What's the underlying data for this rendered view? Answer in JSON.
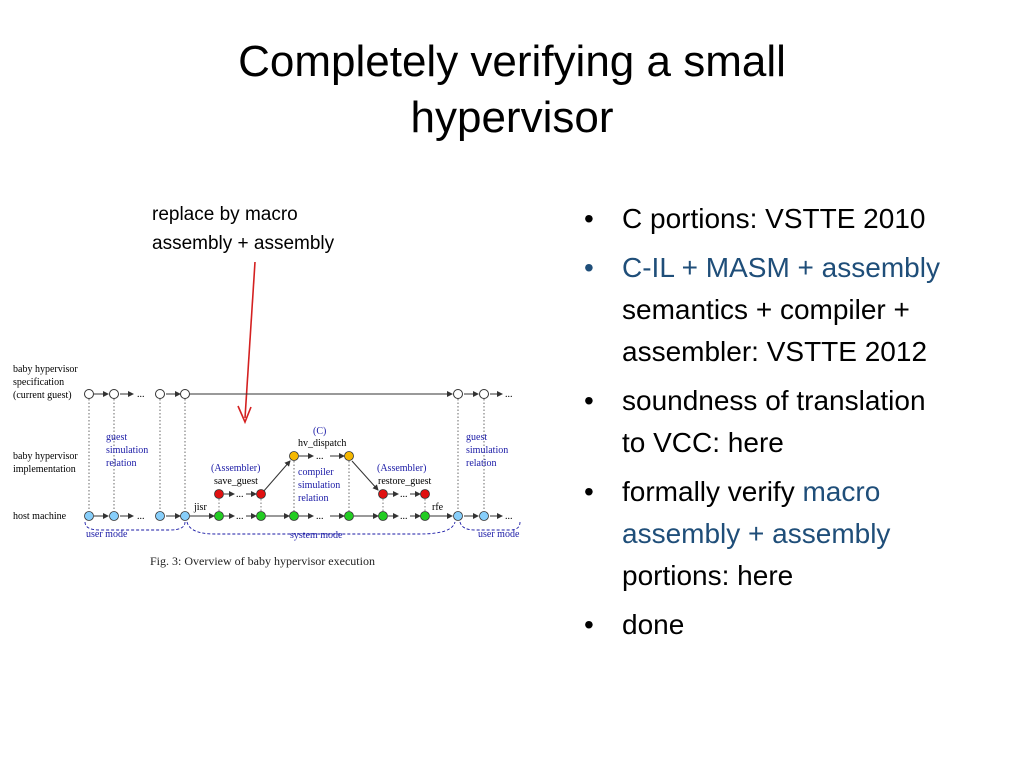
{
  "slide": {
    "title_line1": "Completely verifying a small",
    "title_line2": "hypervisor",
    "annotation_line1": "replace by macro",
    "annotation_line2": "assembly + assembly"
  },
  "bullets": [
    {
      "text": "C portions: VSTTE 2010"
    },
    {
      "blue": "C-IL + MASM + assembly",
      "rest1": "semantics + compiler +",
      "rest2": "assembler: VSTTE 2012"
    },
    {
      "line1": "soundness of translation",
      "line2": "to VCC: here"
    },
    {
      "pre": "formally verify ",
      "blue1": "macro",
      "blue2": "assembly + assembly",
      "post": "portions: here"
    },
    {
      "text": "done"
    }
  ],
  "figure": {
    "row_labels": {
      "spec_l1": "baby hypervisor",
      "spec_l2": "specification",
      "spec_l3": "(current guest)",
      "impl_l1": "baby hypervisor",
      "impl_l2": "implementation",
      "host": "host machine"
    },
    "guest_sim_left": [
      "guest",
      "simulation",
      "relation"
    ],
    "guest_sim_right": [
      "guest",
      "simulation",
      "relation"
    ],
    "compiler_sim": [
      "compiler",
      "simulation",
      "relation"
    ],
    "c_tag": "(C)",
    "hv_dispatch": "hv_dispatch",
    "asm_left_tag": "(Assembler)",
    "save_guest": "save_guest",
    "asm_right_tag": "(Assembler)",
    "restore_guest": "restore_guest",
    "jisr": "jisr",
    "rfe": "rfe",
    "user_mode_left": "user mode",
    "system_mode": "system mode",
    "user_mode_right": "user mode",
    "ellipsis": "...",
    "caption": "Fig. 3: Overview of baby hypervisor execution",
    "colors": {
      "label_blue": "#1a1aa6",
      "host_node": "#87cefa",
      "green_node": "#22cc22",
      "red_node": "#e01010",
      "yellow_node": "#f5b800",
      "arrow_red": "#d42020"
    }
  }
}
